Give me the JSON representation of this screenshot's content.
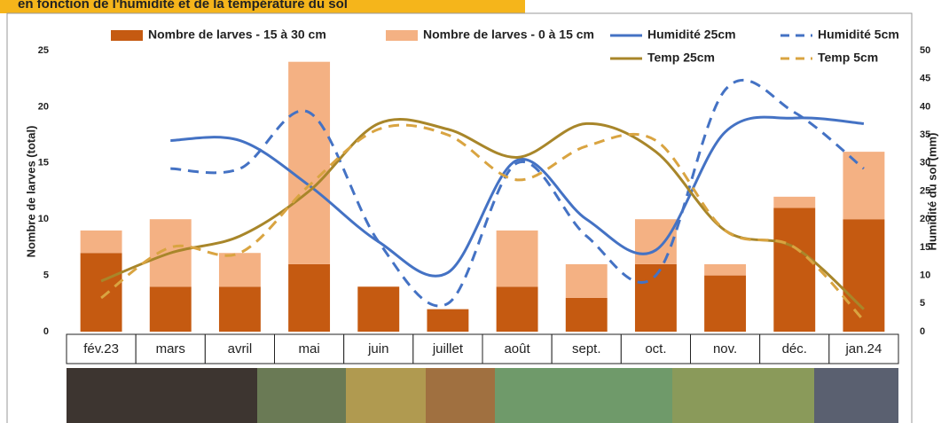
{
  "chart_data": {
    "type": "bar",
    "title": "en fonction de l'humidité et de la température du sol",
    "categories": [
      "fév.23",
      "mars",
      "avril",
      "mai",
      "juin",
      "juillet",
      "août",
      "sept.",
      "oct.",
      "nov.",
      "déc.",
      "jan.24"
    ],
    "stacked": true,
    "series": [
      {
        "name": "Nombre de larves - 15 à 30 cm",
        "type": "bar",
        "color": "#c55a11",
        "values": [
          7,
          4,
          4,
          6,
          4,
          2,
          4,
          3,
          6,
          5,
          11,
          10
        ]
      },
      {
        "name": "Nombre de larves - 0 à 15 cm",
        "type": "bar",
        "color": "#f4b183",
        "values": [
          2,
          6,
          3,
          18,
          0,
          0,
          5,
          3,
          4,
          1,
          1,
          6
        ]
      },
      {
        "name": "Humidité 25cm",
        "type": "line",
        "axis": "y2",
        "color": "#4472c4",
        "dashed": false,
        "values": [
          null,
          34,
          34,
          26,
          16,
          10.5,
          30.5,
          20,
          14.5,
          35.5,
          38,
          37
        ]
      },
      {
        "name": "Humidité 5cm",
        "type": "line",
        "axis": "y2",
        "color": "#4472c4",
        "dashed": true,
        "values": [
          null,
          29,
          29,
          39,
          16,
          5,
          30,
          17,
          10,
          43,
          39,
          29
        ]
      },
      {
        "name": "Temp 25cm",
        "type": "line",
        "color": "#a8862a",
        "dashed": false,
        "values": [
          4.5,
          7,
          8.5,
          12.5,
          18.5,
          18,
          15.5,
          18.5,
          16,
          9,
          7.5,
          2
        ]
      },
      {
        "name": "Temp 5cm",
        "type": "line",
        "color": "#d9a441",
        "dashed": true,
        "values": [
          3,
          7.5,
          7,
          13,
          18,
          17.5,
          13.5,
          16.5,
          17,
          9,
          7.5,
          1
        ]
      }
    ],
    "ylabel": "Nombre de larves (total)",
    "y2label": "Humidité du sol (mm)",
    "ylim": [
      0,
      25
    ],
    "yticks": [
      0,
      5,
      10,
      15,
      20,
      25
    ],
    "y2lim": [
      0,
      50
    ],
    "y2ticks": [
      0,
      5,
      10,
      15,
      20,
      25,
      30,
      35,
      40,
      45,
      50
    ],
    "legend": "top"
  }
}
